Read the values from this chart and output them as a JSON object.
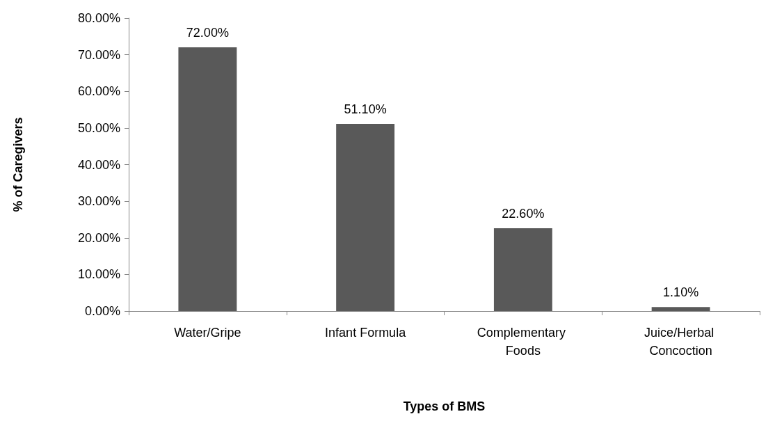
{
  "chart_data": {
    "type": "bar",
    "xlabel": "Types of BMS",
    "ylabel": "% of Caregivers",
    "categories": [
      "Water/Gripe",
      "Infant Formula",
      "Complementary Foods",
      "Juice/Herbal Concoction"
    ],
    "values": [
      72.0,
      51.1,
      22.6,
      1.1
    ],
    "value_labels": [
      "72.00%",
      "51.10%",
      "22.60%",
      "1.10%"
    ],
    "color": "#595959",
    "ylim": [
      0,
      80
    ],
    "yticks": [
      {
        "value": 0,
        "label": "0.00%"
      },
      {
        "value": 10,
        "label": "10.00%"
      },
      {
        "value": 20,
        "label": "20.00%"
      },
      {
        "value": 30,
        "label": "30.00%"
      },
      {
        "value": 40,
        "label": "40.00%"
      },
      {
        "value": 50,
        "label": "50.00%"
      },
      {
        "value": 60,
        "label": "60.00%"
      },
      {
        "value": 70,
        "label": "70.00%"
      },
      {
        "value": 80,
        "label": "80.00%"
      }
    ],
    "grid": false
  }
}
